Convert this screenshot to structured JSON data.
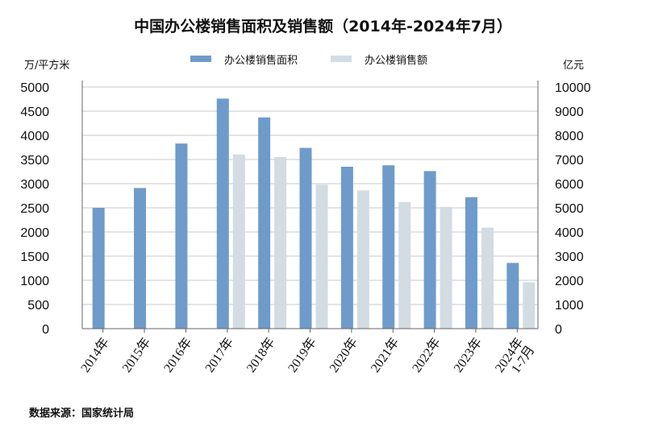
{
  "chart_data": {
    "type": "bar",
    "title": "中国办公楼销售面积及销售额（2014年-2024年7月）",
    "categories": [
      "2014年",
      "2015年",
      "2016年",
      "2017年",
      "2018年",
      "2019年",
      "2020年",
      "2021年",
      "2022年",
      "2023年",
      "2024年\n1-7月"
    ],
    "series": [
      {
        "name": "办公楼销售面积",
        "axis": "left",
        "color": "#6e9bca",
        "values": [
          2500,
          2910,
          3830,
          4760,
          4370,
          3740,
          3350,
          3380,
          3260,
          2720,
          1360
        ]
      },
      {
        "name": "办公楼销售额",
        "axis": "right",
        "color": "#d3dbe3",
        "values": [
          null,
          null,
          null,
          7210,
          7100,
          5960,
          5720,
          5240,
          5040,
          4180,
          1920
        ]
      }
    ],
    "y_left": {
      "label": "万/平方米",
      "range": [
        0,
        5000
      ],
      "ticks": [
        0,
        500,
        1000,
        1500,
        2000,
        2500,
        3000,
        3500,
        4000,
        4500,
        5000
      ]
    },
    "y_right": {
      "label": "亿元",
      "range": [
        0,
        10000
      ],
      "ticks": [
        0,
        1000,
        2000,
        3000,
        4000,
        5000,
        6000,
        7000,
        8000,
        9000,
        10000
      ]
    },
    "grid": true,
    "legend_position": "top-center"
  },
  "source_note": "数据来源：国家统计局"
}
